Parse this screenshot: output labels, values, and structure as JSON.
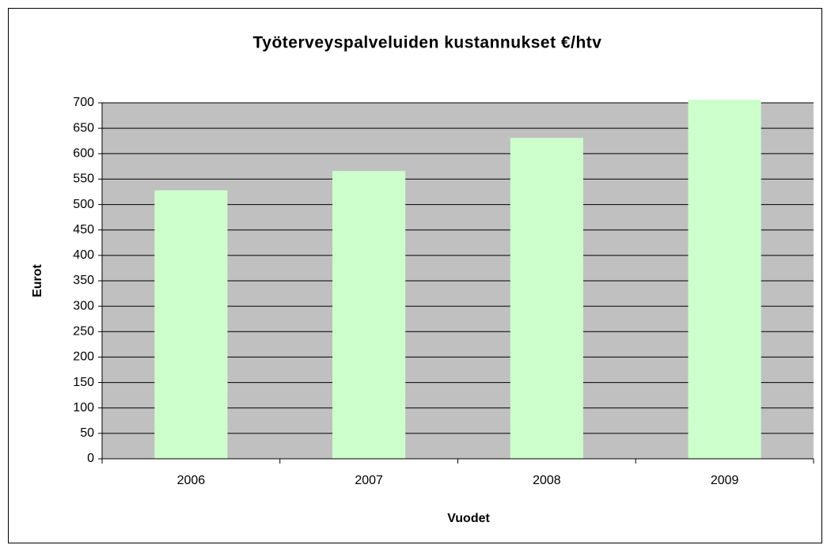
{
  "chart_data": {
    "type": "bar",
    "title": "Työterveyspalveluiden kustannukset €/htv",
    "categories": [
      "2006",
      "2007",
      "2008",
      "2009"
    ],
    "values": [
      528,
      566,
      631,
      706
    ],
    "color": "#ccffcc",
    "ylim": [
      0,
      700
    ],
    "yticks": [
      0,
      50,
      100,
      150,
      200,
      250,
      300,
      350,
      400,
      450,
      500,
      550,
      600,
      650,
      700
    ],
    "grid": true,
    "xlabel": "Vuodet",
    "ylabel": "Eurot",
    "plot_background": "#c0c0c0"
  }
}
